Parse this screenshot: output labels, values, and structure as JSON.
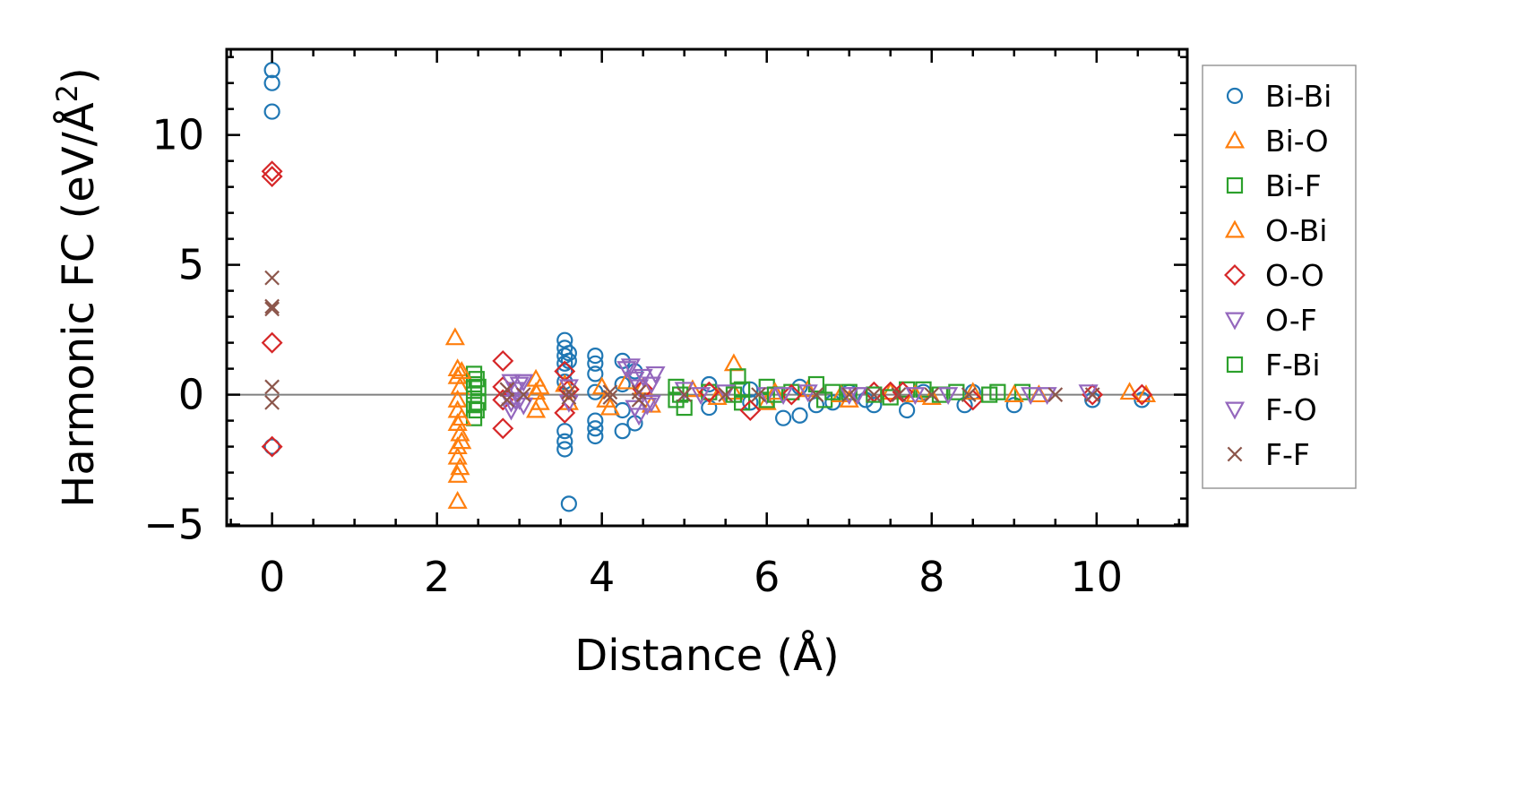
{
  "chart_data": {
    "type": "scatter",
    "title": "",
    "xlabel": "Distance (Å)",
    "ylabel_prefix": "Harmonic FC (eV/Å",
    "ylabel_superscript": "2",
    "ylabel_suffix": ")",
    "xlim": [
      -0.55,
      11.1
    ],
    "ylim": [
      -5.05,
      13.3
    ],
    "x_ticks": [
      0,
      2,
      4,
      6,
      8,
      10
    ],
    "x_tick_labels": [
      "0",
      "2",
      "4",
      "6",
      "8",
      "10"
    ],
    "y_ticks": [
      -5,
      0,
      5,
      10
    ],
    "y_tick_labels": [
      "−5",
      "0",
      "5",
      "10"
    ],
    "x_minor_step": 0.5,
    "y_minor_step": 1,
    "zero_line": true,
    "legend_position": "outside-right",
    "series": [
      {
        "name": "Bi-Bi",
        "marker": "circle",
        "color": "#1f77b4",
        "points": [
          [
            0,
            12.5
          ],
          [
            0,
            12.0
          ],
          [
            0,
            10.9
          ],
          [
            0,
            -2.0
          ],
          [
            3.55,
            2.1
          ],
          [
            3.55,
            1.8
          ],
          [
            3.55,
            1.5
          ],
          [
            3.55,
            1.2
          ],
          [
            3.55,
            0.9
          ],
          [
            3.55,
            0.5
          ],
          [
            3.55,
            -1.4
          ],
          [
            3.55,
            -1.8
          ],
          [
            3.55,
            -2.1
          ],
          [
            3.6,
            -4.2
          ],
          [
            3.6,
            1.6
          ],
          [
            3.6,
            1.3
          ],
          [
            3.92,
            1.5
          ],
          [
            3.92,
            1.2
          ],
          [
            3.92,
            0.8
          ],
          [
            3.92,
            0.1
          ],
          [
            3.92,
            -1.0
          ],
          [
            3.92,
            -1.3
          ],
          [
            3.92,
            -1.6
          ],
          [
            4.25,
            1.3
          ],
          [
            4.25,
            0.4
          ],
          [
            4.25,
            -0.6
          ],
          [
            4.25,
            -1.4
          ],
          [
            4.4,
            0.9
          ],
          [
            4.4,
            -1.1
          ],
          [
            5.3,
            0.4
          ],
          [
            5.3,
            -0.5
          ],
          [
            5.8,
            0.2
          ],
          [
            5.8,
            -0.3
          ],
          [
            6.2,
            -0.9
          ],
          [
            6.4,
            -0.8
          ],
          [
            6.4,
            0.3
          ],
          [
            6.6,
            -0.4
          ],
          [
            6.8,
            -0.3
          ],
          [
            7.0,
            0.1
          ],
          [
            7.2,
            -0.2
          ],
          [
            7.3,
            -0.4
          ],
          [
            7.7,
            -0.6
          ],
          [
            7.9,
            0.1
          ],
          [
            8.4,
            -0.4
          ],
          [
            8.5,
            0.1
          ],
          [
            9.0,
            -0.4
          ],
          [
            9.95,
            -0.2
          ],
          [
            10.55,
            -0.2
          ]
        ]
      },
      {
        "name": "Bi-O",
        "marker": "triangle-up",
        "color": "#ff7f0e",
        "points": [
          [
            2.22,
            2.2
          ],
          [
            2.25,
            1.0
          ],
          [
            2.25,
            0.7
          ],
          [
            2.28,
            0.3
          ],
          [
            2.25,
            -0.2
          ],
          [
            2.25,
            -0.6
          ],
          [
            2.25,
            -1.1
          ],
          [
            2.28,
            -1.5
          ],
          [
            2.25,
            -2.0
          ],
          [
            2.25,
            -2.4
          ],
          [
            2.28,
            -2.8
          ],
          [
            2.25,
            -3.1
          ],
          [
            2.25,
            -4.1
          ],
          [
            3.2,
            0.6
          ],
          [
            3.2,
            0.1
          ],
          [
            3.2,
            -0.6
          ],
          [
            3.55,
            0.4
          ],
          [
            3.6,
            -0.3
          ],
          [
            4.0,
            0.3
          ],
          [
            4.1,
            -0.5
          ],
          [
            4.3,
            0.5
          ],
          [
            4.6,
            -0.4
          ],
          [
            5.1,
            0.2
          ],
          [
            5.6,
            1.2
          ],
          [
            5.6,
            0.1
          ],
          [
            6.0,
            -0.3
          ],
          [
            6.5,
            0.2
          ],
          [
            7.0,
            -0.2
          ],
          [
            7.5,
            0.1
          ],
          [
            8.0,
            -0.1
          ],
          [
            8.5,
            0.1
          ],
          [
            9.3,
            0.0
          ],
          [
            10.4,
            0.1
          ]
        ]
      },
      {
        "name": "Bi-F",
        "marker": "square",
        "color": "#2ca02c",
        "points": [
          [
            2.45,
            0.8
          ],
          [
            2.45,
            0.4
          ],
          [
            2.45,
            0.0
          ],
          [
            2.45,
            -0.4
          ],
          [
            2.45,
            -0.9
          ],
          [
            2.48,
            0.6
          ],
          [
            2.48,
            -0.6
          ],
          [
            4.9,
            0.3
          ],
          [
            4.9,
            -0.2
          ],
          [
            5.0,
            -0.5
          ],
          [
            5.3,
            0.1
          ],
          [
            5.65,
            0.7
          ],
          [
            5.7,
            0.2
          ],
          [
            5.7,
            -0.3
          ],
          [
            6.0,
            0.3
          ],
          [
            6.0,
            -0.2
          ],
          [
            6.3,
            0.1
          ],
          [
            6.6,
            0.4
          ],
          [
            6.7,
            -0.2
          ],
          [
            7.0,
            0.1
          ],
          [
            7.5,
            -0.1
          ],
          [
            7.7,
            0.2
          ],
          [
            7.9,
            0.2
          ],
          [
            8.3,
            0.1
          ],
          [
            8.8,
            0.1
          ],
          [
            9.1,
            0.1
          ]
        ]
      },
      {
        "name": "O-Bi",
        "marker": "triangle-up",
        "color": "#ff7f0e",
        "points": [
          [
            2.3,
            0.9
          ],
          [
            2.3,
            -0.9
          ],
          [
            2.3,
            -1.8
          ],
          [
            3.25,
            0.3
          ],
          [
            3.25,
            -0.3
          ],
          [
            4.05,
            -0.2
          ],
          [
            4.5,
            0.3
          ],
          [
            5.4,
            -0.1
          ],
          [
            6.1,
            0.1
          ],
          [
            6.9,
            0.0
          ],
          [
            7.8,
            0.0
          ],
          [
            9.0,
            0.0
          ],
          [
            10.6,
            0.0
          ]
        ]
      },
      {
        "name": "O-O",
        "marker": "diamond",
        "color": "#d62728",
        "points": [
          [
            0,
            8.6
          ],
          [
            0,
            8.4
          ],
          [
            0,
            2.0
          ],
          [
            0,
            -2.0
          ],
          [
            2.8,
            1.3
          ],
          [
            2.8,
            -1.3
          ],
          [
            2.8,
            0.3
          ],
          [
            2.8,
            -0.2
          ],
          [
            3.55,
            0.9
          ],
          [
            3.55,
            -0.7
          ],
          [
            3.6,
            0.2
          ],
          [
            4.5,
            0.2
          ],
          [
            5.3,
            0.1
          ],
          [
            5.8,
            -0.6
          ],
          [
            6.3,
            0.0
          ],
          [
            7.3,
            0.1
          ],
          [
            7.5,
            0.1
          ],
          [
            7.65,
            0.1
          ],
          [
            8.5,
            -0.2
          ],
          [
            9.95,
            0.0
          ],
          [
            10.55,
            0.0
          ]
        ]
      },
      {
        "name": "O-F",
        "marker": "triangle-down",
        "color": "#9467bd",
        "points": [
          [
            2.9,
            0.5
          ],
          [
            2.9,
            -0.3
          ],
          [
            2.9,
            -0.6
          ],
          [
            3.0,
            0.4
          ],
          [
            3.0,
            -0.2
          ],
          [
            3.6,
            0.3
          ],
          [
            3.6,
            -0.3
          ],
          [
            4.3,
            1.0
          ],
          [
            4.4,
            0.6
          ],
          [
            4.4,
            -0.5
          ],
          [
            4.45,
            -0.8
          ],
          [
            4.5,
            0.7
          ],
          [
            4.6,
            0.4
          ],
          [
            4.6,
            -0.3
          ],
          [
            5.0,
            0.2
          ],
          [
            5.5,
            0.1
          ],
          [
            6.0,
            0.0
          ],
          [
            6.5,
            0.1
          ],
          [
            7.0,
            0.0
          ],
          [
            7.8,
            0.0
          ],
          [
            9.2,
            0.0
          ],
          [
            9.9,
            0.1
          ]
        ]
      },
      {
        "name": "F-Bi",
        "marker": "square",
        "color": "#2ca02c",
        "points": [
          [
            2.5,
            0.3
          ],
          [
            2.5,
            -0.3
          ],
          [
            4.95,
            0.0
          ],
          [
            5.6,
            0.0
          ],
          [
            6.1,
            0.0
          ],
          [
            6.8,
            0.1
          ],
          [
            7.3,
            0.0
          ],
          [
            8.1,
            0.0
          ],
          [
            8.7,
            0.0
          ]
        ]
      },
      {
        "name": "F-O",
        "marker": "triangle-down",
        "color": "#9467bd",
        "points": [
          [
            2.95,
            0.2
          ],
          [
            2.95,
            -0.2
          ],
          [
            3.05,
            0.5
          ],
          [
            3.05,
            -0.4
          ],
          [
            4.35,
            1.1
          ],
          [
            4.45,
            0.3
          ],
          [
            4.55,
            -0.4
          ],
          [
            4.65,
            0.8
          ],
          [
            5.2,
            0.0
          ],
          [
            6.2,
            0.0
          ],
          [
            7.1,
            0.0
          ],
          [
            8.2,
            0.0
          ],
          [
            9.4,
            0.0
          ]
        ]
      },
      {
        "name": "F-F",
        "marker": "cross",
        "color": "#8c564b",
        "points": [
          [
            0,
            4.5
          ],
          [
            0,
            3.4
          ],
          [
            0,
            3.3
          ],
          [
            0,
            0.3
          ],
          [
            0,
            -0.3
          ],
          [
            2.85,
            0.2
          ],
          [
            2.85,
            -0.2
          ],
          [
            3.05,
            0.0
          ],
          [
            3.6,
            0.1
          ],
          [
            3.6,
            -0.1
          ],
          [
            4.1,
            0.1
          ],
          [
            4.1,
            -0.1
          ],
          [
            4.45,
            0.1
          ],
          [
            4.45,
            -0.2
          ],
          [
            5.0,
            0.0
          ],
          [
            5.5,
            0.0
          ],
          [
            5.9,
            0.0
          ],
          [
            6.6,
            0.0
          ],
          [
            7.0,
            0.0
          ],
          [
            7.3,
            0.0
          ],
          [
            7.6,
            0.0
          ],
          [
            8.0,
            0.0
          ],
          [
            8.45,
            0.0
          ],
          [
            9.5,
            0.0
          ],
          [
            9.95,
            0.0
          ]
        ]
      }
    ]
  }
}
